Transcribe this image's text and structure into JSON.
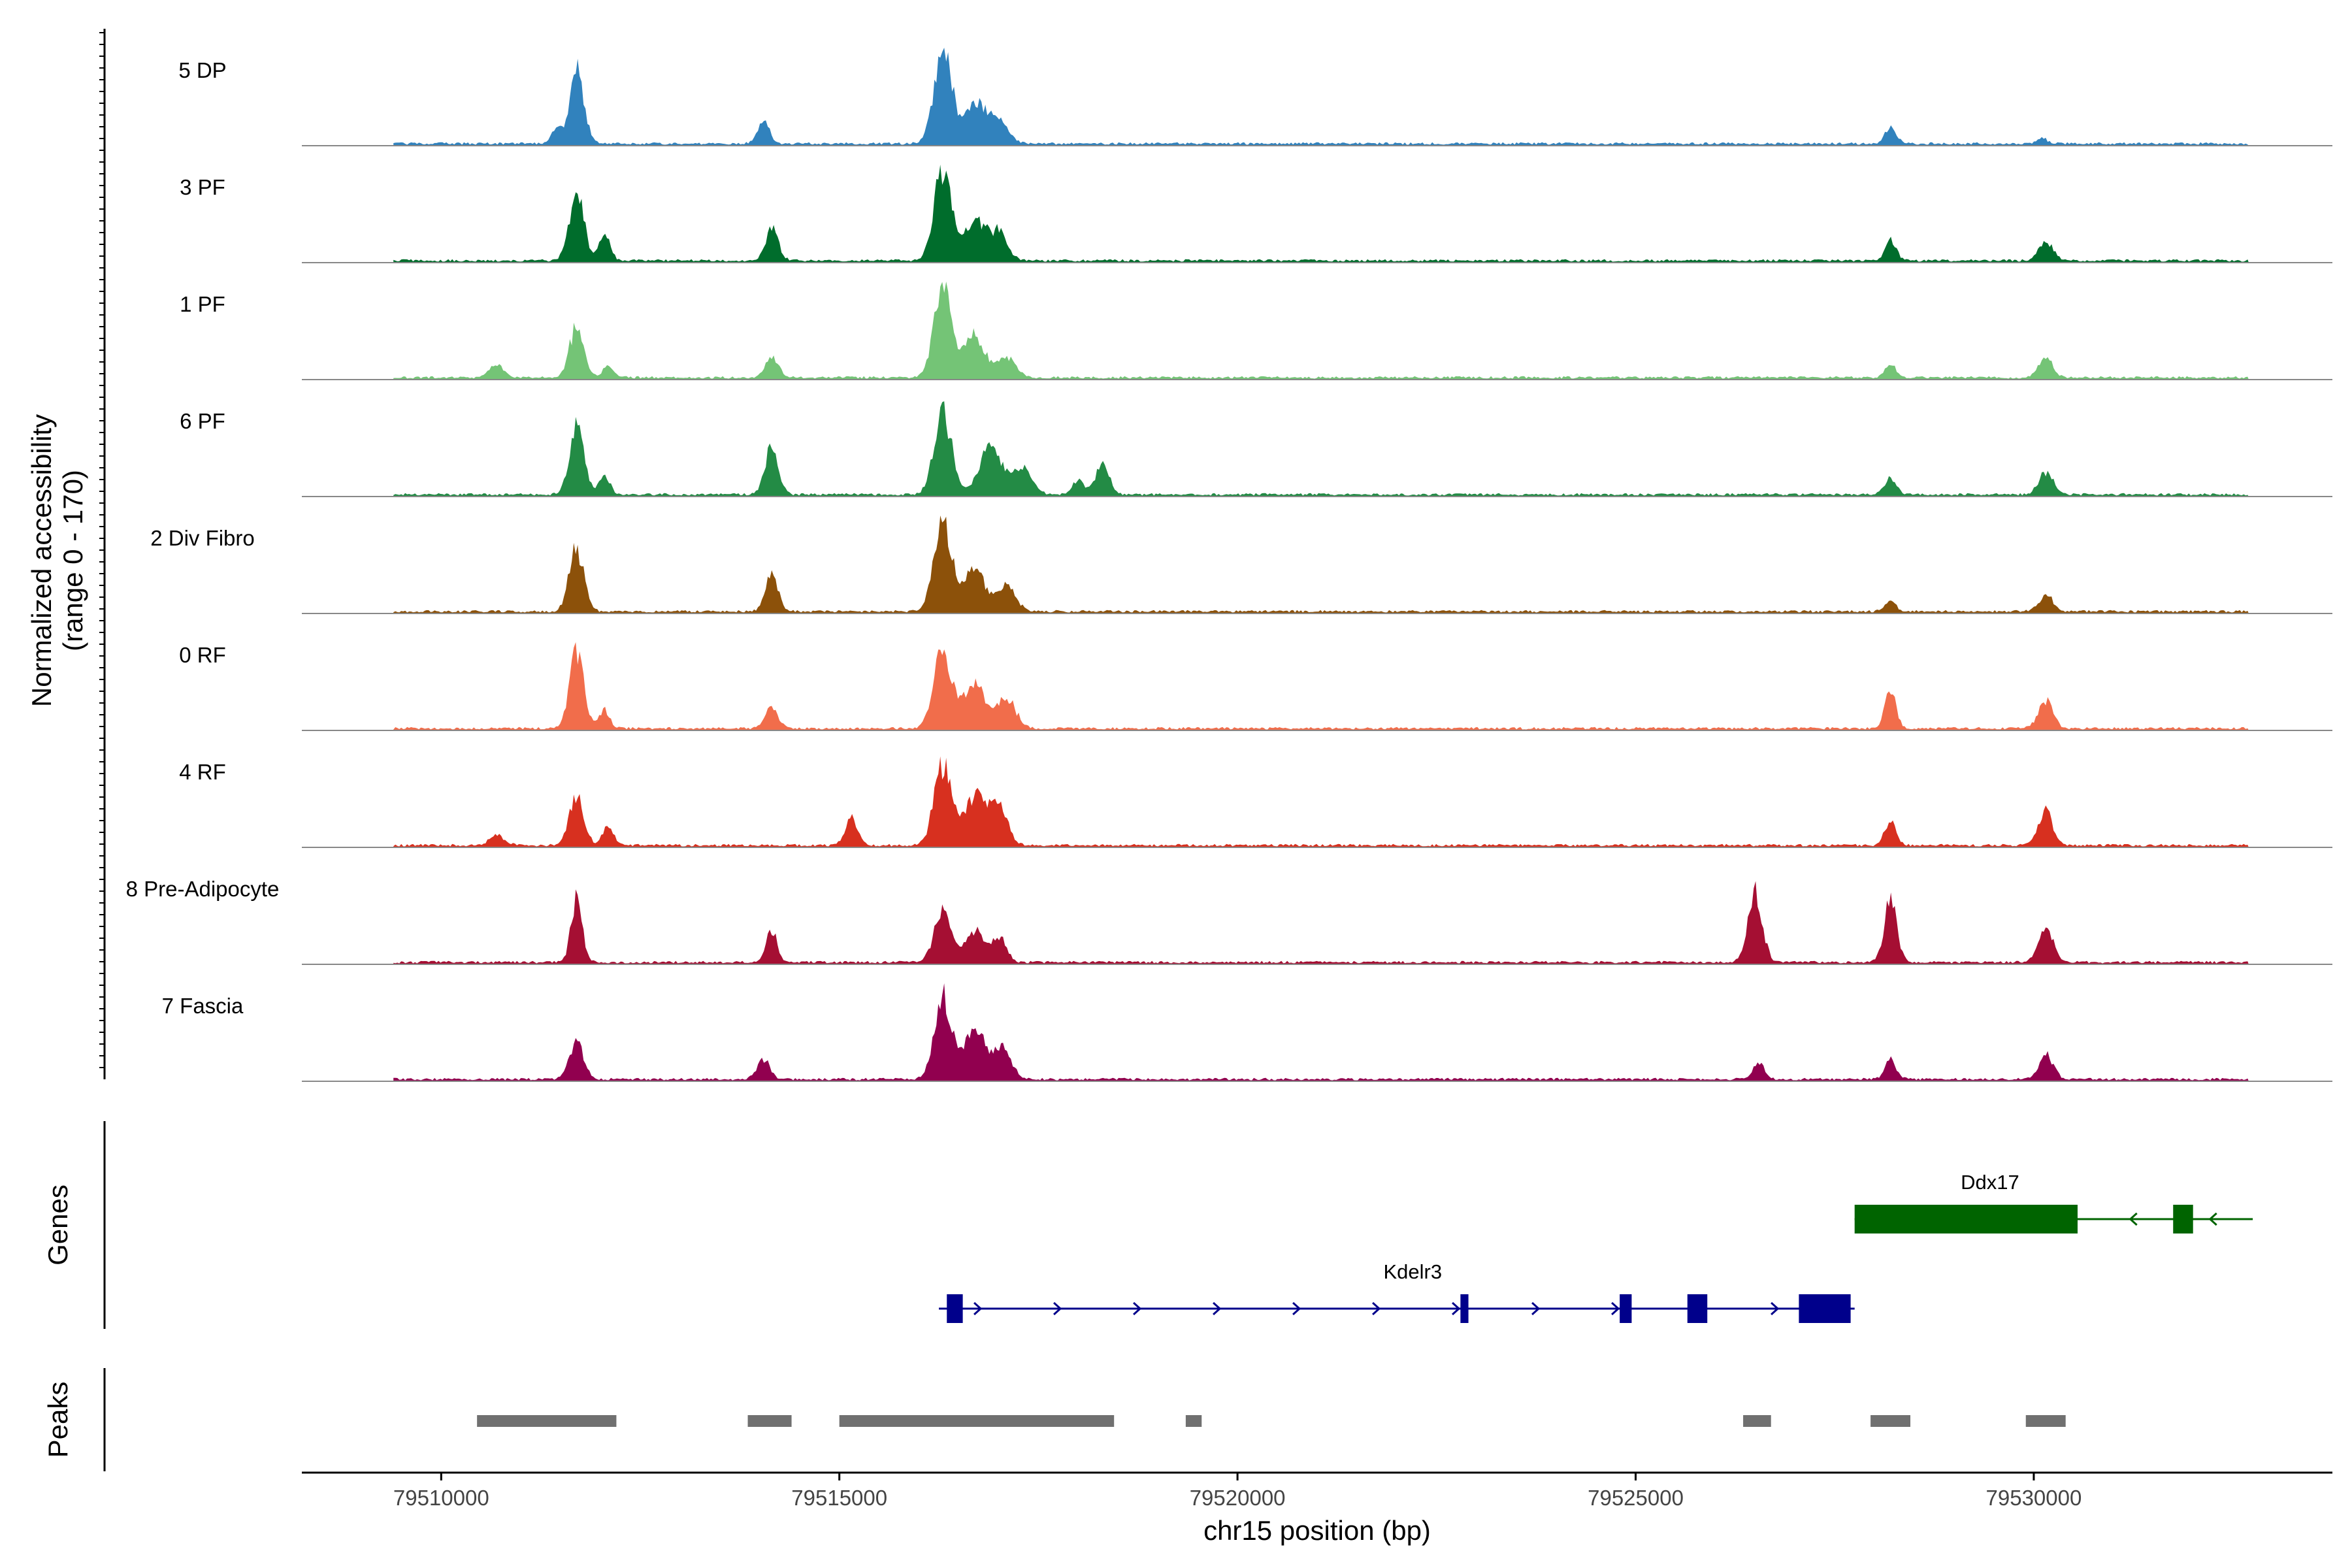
{
  "chart_data": {
    "type": "area",
    "title": "",
    "xlabel": "chr15 position (bp)",
    "ylabel_line1": "Normalized accessibility",
    "ylabel_line2": "(range 0 - 170)",
    "y_range": [
      0,
      170
    ],
    "xlim": [
      79508250,
      79533750
    ],
    "x_ticks": [
      79510000,
      79515000,
      79520000,
      79525000,
      79530000
    ],
    "x_tick_labels": [
      "79510000",
      "79515000",
      "79520000",
      "79525000",
      "79530000"
    ],
    "track_labels": {
      "genes": "Genes",
      "peaks": "Peaks"
    },
    "coverage_data_start": 79509400,
    "coverage_data_end": 79532700,
    "tracks": [
      {
        "name": "5 DP",
        "color": "#3182BD",
        "peaks": [
          [
            79511700,
            0.8,
            90
          ],
          [
            79511450,
            0.2,
            60
          ],
          [
            79514050,
            0.22,
            80
          ],
          [
            79516300,
            1.0,
            110
          ],
          [
            79516700,
            0.45,
            140
          ],
          [
            79517000,
            0.25,
            120
          ],
          [
            79528200,
            0.18,
            70
          ],
          [
            79530100,
            0.06,
            60
          ]
        ]
      },
      {
        "name": "3 PF",
        "color": "#006D2C",
        "peaks": [
          [
            79511700,
            0.75,
            90
          ],
          [
            79512050,
            0.28,
            70
          ],
          [
            79514150,
            0.35,
            80
          ],
          [
            79516300,
            1.0,
            110
          ],
          [
            79516700,
            0.45,
            130
          ],
          [
            79517000,
            0.3,
            110
          ],
          [
            79528200,
            0.22,
            70
          ],
          [
            79530150,
            0.2,
            90
          ]
        ]
      },
      {
        "name": "1 PF",
        "color": "#74C476",
        "peaks": [
          [
            79510700,
            0.14,
            90
          ],
          [
            79511700,
            0.55,
            90
          ],
          [
            79512100,
            0.12,
            70
          ],
          [
            79514150,
            0.25,
            80
          ],
          [
            79516300,
            1.0,
            110
          ],
          [
            79516700,
            0.45,
            130
          ],
          [
            79517100,
            0.22,
            110
          ],
          [
            79528200,
            0.15,
            70
          ],
          [
            79530150,
            0.22,
            90
          ]
        ]
      },
      {
        "name": "6 PF",
        "color": "#238B45",
        "peaks": [
          [
            79511700,
            0.75,
            90
          ],
          [
            79512050,
            0.2,
            70
          ],
          [
            79514150,
            0.55,
            80
          ],
          [
            79516300,
            0.9,
            110
          ],
          [
            79516900,
            0.5,
            140
          ],
          [
            79517300,
            0.3,
            120
          ],
          [
            79518300,
            0.32,
            90
          ],
          [
            79518000,
            0.15,
            70
          ],
          [
            79528200,
            0.18,
            70
          ],
          [
            79530150,
            0.25,
            90
          ]
        ]
      },
      {
        "name": "2 Div Fibro",
        "color": "#8C510A",
        "peaks": [
          [
            79511700,
            0.7,
            90
          ],
          [
            79514150,
            0.4,
            80
          ],
          [
            79516300,
            1.0,
            110
          ],
          [
            79516700,
            0.45,
            130
          ],
          [
            79517100,
            0.3,
            110
          ],
          [
            79528200,
            0.12,
            70
          ],
          [
            79530150,
            0.18,
            90
          ]
        ]
      },
      {
        "name": "0 RF",
        "color": "#F16D4B",
        "peaks": [
          [
            79511700,
            0.8,
            90
          ],
          [
            79512050,
            0.2,
            70
          ],
          [
            79514150,
            0.22,
            80
          ],
          [
            79516300,
            0.9,
            110
          ],
          [
            79516700,
            0.55,
            130
          ],
          [
            79517100,
            0.35,
            110
          ],
          [
            79528200,
            0.4,
            70
          ],
          [
            79530150,
            0.3,
            90
          ]
        ]
      },
      {
        "name": "4 RF",
        "color": "#D7301F",
        "peaks": [
          [
            79510700,
            0.12,
            90
          ],
          [
            79511700,
            0.55,
            90
          ],
          [
            79512100,
            0.2,
            70
          ],
          [
            79515150,
            0.3,
            80
          ],
          [
            79516300,
            0.9,
            110
          ],
          [
            79516700,
            0.55,
            130
          ],
          [
            79517000,
            0.45,
            110
          ],
          [
            79528200,
            0.28,
            70
          ],
          [
            79530150,
            0.38,
            90
          ]
        ]
      },
      {
        "name": "8 Pre-Adipocyte",
        "color": "#A50F33",
        "peaks": [
          [
            79511700,
            0.7,
            70
          ],
          [
            79514150,
            0.35,
            70
          ],
          [
            79516300,
            0.55,
            110
          ],
          [
            79516700,
            0.35,
            110
          ],
          [
            79517000,
            0.28,
            90
          ],
          [
            79526500,
            0.75,
            90
          ],
          [
            79528200,
            0.7,
            80
          ],
          [
            79530150,
            0.4,
            90
          ]
        ]
      },
      {
        "name": "7 Fascia",
        "color": "#91004F",
        "peaks": [
          [
            79511700,
            0.4,
            90
          ],
          [
            79514050,
            0.22,
            80
          ],
          [
            79516300,
            0.9,
            110
          ],
          [
            79516700,
            0.55,
            130
          ],
          [
            79517050,
            0.35,
            110
          ],
          [
            79526550,
            0.18,
            70
          ],
          [
            79528200,
            0.22,
            70
          ],
          [
            79530150,
            0.28,
            90
          ]
        ]
      }
    ],
    "genes": [
      {
        "name": "Ddx17",
        "strand": "-",
        "start": 79527750,
        "end": 79532750,
        "color": "#006400",
        "exons": [
          [
            79527750,
            79530550
          ],
          [
            79531750,
            79532000
          ]
        ]
      },
      {
        "name": "Kdelr3",
        "strand": "+",
        "start": 79516250,
        "end": 79527750,
        "color": "#00008B",
        "exons": [
          [
            79516350,
            79516550
          ],
          [
            79522800,
            79522900
          ],
          [
            79524800,
            79524950
          ],
          [
            79525650,
            79525900
          ],
          [
            79527050,
            79527700
          ]
        ]
      }
    ],
    "peak_regions": [
      [
        79510450,
        79512200
      ],
      [
        79513850,
        79514400
      ],
      [
        79515000,
        79518450
      ],
      [
        79519350,
        79519550
      ],
      [
        79526350,
        79526700
      ],
      [
        79527950,
        79528450
      ],
      [
        79529900,
        79530400
      ]
    ]
  }
}
